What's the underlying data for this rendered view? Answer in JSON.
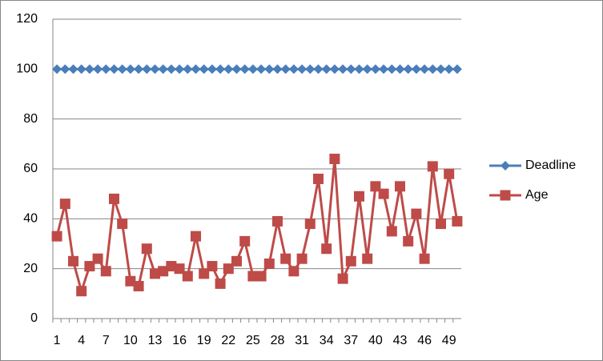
{
  "chart_data": {
    "type": "line",
    "categories": [
      1,
      null,
      null,
      4,
      null,
      null,
      7,
      null,
      null,
      10,
      null,
      null,
      13,
      null,
      null,
      16,
      null,
      null,
      19,
      null,
      null,
      22,
      null,
      null,
      25,
      null,
      null,
      28,
      null,
      null,
      31,
      null,
      null,
      34,
      null,
      null,
      37,
      null,
      null,
      40,
      null,
      null,
      43,
      null,
      null,
      46,
      null,
      null,
      49,
      null
    ],
    "series": [
      {
        "name": "Deadline",
        "color": "#4a7ebb",
        "marker": "diamond",
        "values": [
          100,
          100,
          100,
          100,
          100,
          100,
          100,
          100,
          100,
          100,
          100,
          100,
          100,
          100,
          100,
          100,
          100,
          100,
          100,
          100,
          100,
          100,
          100,
          100,
          100,
          100,
          100,
          100,
          100,
          100,
          100,
          100,
          100,
          100,
          100,
          100,
          100,
          100,
          100,
          100,
          100,
          100,
          100,
          100,
          100,
          100,
          100,
          100,
          100,
          100
        ]
      },
      {
        "name": "Age",
        "color": "#be4b48",
        "marker": "square",
        "values": [
          33,
          46,
          23,
          11,
          21,
          24,
          19,
          48,
          38,
          15,
          13,
          28,
          18,
          19,
          21,
          20,
          17,
          33,
          18,
          21,
          14,
          20,
          23,
          31,
          17,
          17,
          22,
          39,
          24,
          19,
          24,
          38,
          56,
          28,
          64,
          16,
          23,
          49,
          24,
          53,
          50,
          35,
          53,
          31,
          42,
          24,
          61,
          38,
          58,
          39
        ]
      }
    ],
    "ylim": [
      0,
      120
    ],
    "yticks": [
      0,
      20,
      40,
      60,
      80,
      100,
      120
    ],
    "grid": true,
    "legend": "right"
  }
}
